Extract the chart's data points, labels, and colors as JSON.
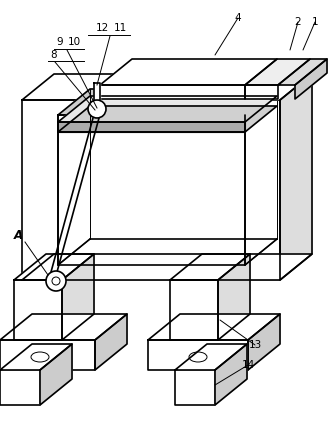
{
  "background_color": "#ffffff",
  "line_color": "#000000",
  "lw": 1.2,
  "tlw": 0.7,
  "figure_width": 3.31,
  "figure_height": 4.25,
  "dpi": 100
}
